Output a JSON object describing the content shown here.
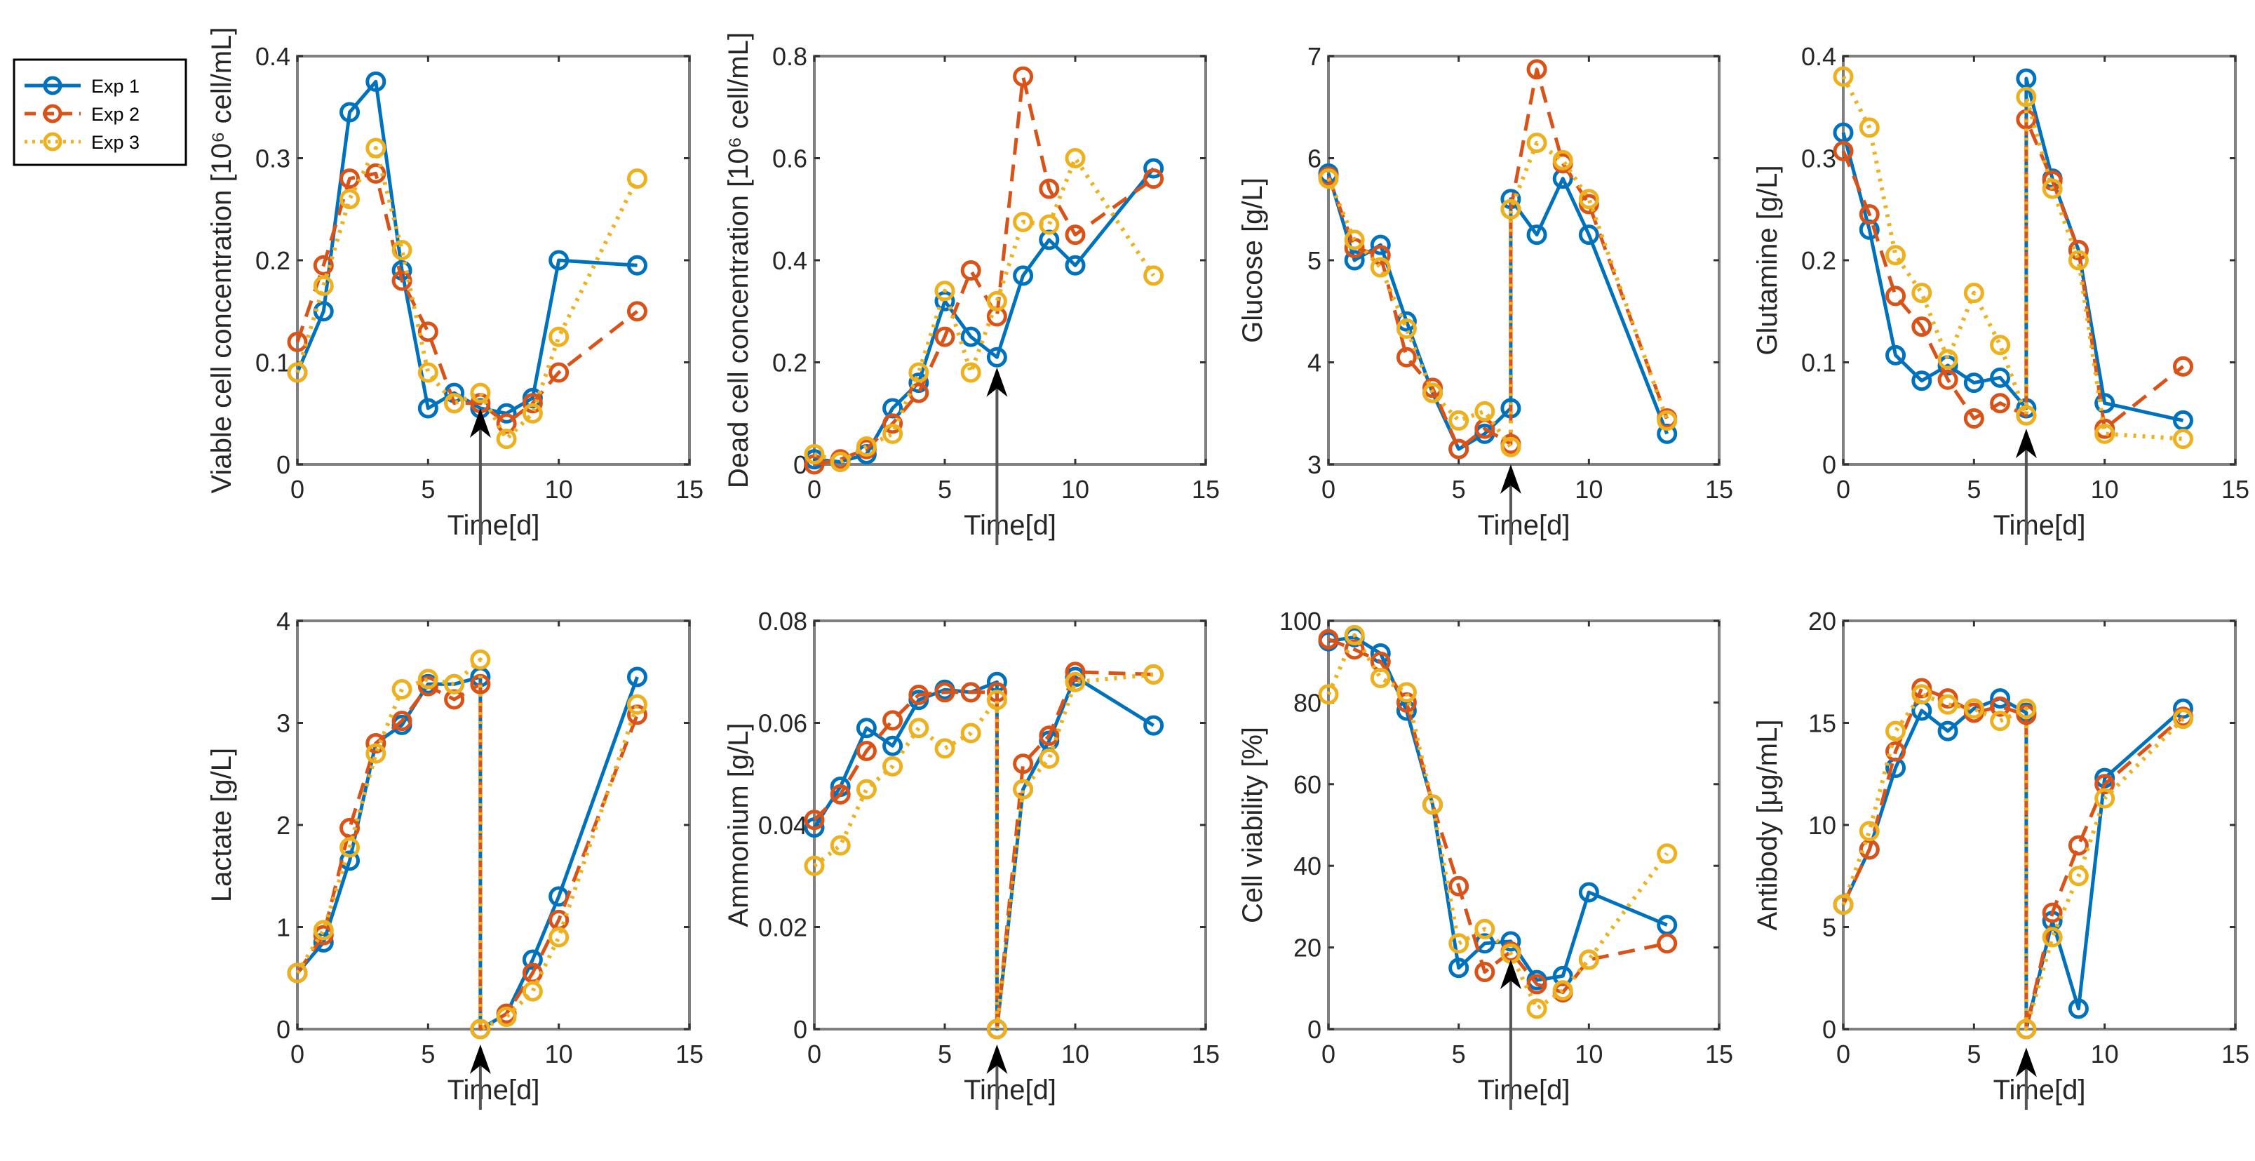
{
  "colors": {
    "exp1": "#0072BD",
    "exp2": "#D95319",
    "exp3": "#EDB120",
    "axis": "#808080",
    "arrow": "#000000",
    "arrow_line": "#555555"
  },
  "legend": {
    "placement": "top-left",
    "entries": [
      "Exp 1",
      "Exp 2",
      "Exp 3"
    ]
  },
  "chart_data": [
    {
      "type": "line",
      "ylabel": "Viable cell concentration [10⁶ cell/mL]",
      "xlabel": "Time[d]",
      "xlim": [
        0,
        15
      ],
      "ylim": [
        0,
        0.4
      ],
      "xticks": [
        "0",
        "5",
        "10",
        "15"
      ],
      "yticks": [
        "0",
        "0.1",
        "0.2",
        "0.3",
        "0.4"
      ],
      "arrow": {
        "x": 7,
        "y_tip": 0.055
      },
      "x": [
        0,
        1,
        2,
        3,
        4,
        5,
        6,
        7,
        8,
        9,
        10,
        13
      ],
      "series": [
        {
          "name": "Exp 1",
          "values": [
            0.09,
            0.15,
            0.345,
            0.375,
            0.19,
            0.055,
            0.07,
            0.055,
            0.05,
            0.065,
            0.2,
            0.195
          ]
        },
        {
          "name": "Exp 2",
          "values": [
            0.12,
            0.195,
            0.28,
            0.285,
            0.18,
            0.13,
            0.06,
            0.06,
            0.04,
            0.06,
            0.09,
            0.15
          ]
        },
        {
          "name": "Exp 3",
          "values": [
            0.09,
            0.175,
            0.26,
            0.31,
            0.21,
            0.09,
            0.06,
            0.07,
            0.025,
            0.05,
            0.125,
            0.28
          ]
        }
      ]
    },
    {
      "type": "line",
      "ylabel": "Dead cell concentration [10⁶ cell/mL]",
      "xlabel": "Time[d]",
      "xlim": [
        0,
        15
      ],
      "ylim": [
        0,
        0.8
      ],
      "xticks": [
        "0",
        "5",
        "10",
        "15"
      ],
      "yticks": [
        "0",
        "0.2",
        "0.4",
        "0.6",
        "0.8"
      ],
      "arrow": {
        "x": 7,
        "y_tip": 0.19
      },
      "x": [
        0,
        1,
        2,
        3,
        4,
        5,
        6,
        7,
        8,
        9,
        10,
        13
      ],
      "series": [
        {
          "name": "Exp 1",
          "values": [
            0.01,
            0.005,
            0.02,
            0.11,
            0.16,
            0.32,
            0.25,
            0.21,
            0.37,
            0.44,
            0.39,
            0.58
          ]
        },
        {
          "name": "Exp 2",
          "values": [
            0.0,
            0.01,
            0.03,
            0.08,
            0.14,
            0.25,
            0.38,
            0.29,
            0.76,
            0.54,
            0.45,
            0.56
          ]
        },
        {
          "name": "Exp 3",
          "values": [
            0.02,
            0.005,
            0.035,
            0.06,
            0.18,
            0.34,
            0.18,
            0.32,
            0.475,
            0.47,
            0.6,
            0.37
          ]
        }
      ]
    },
    {
      "type": "line",
      "ylabel": "Glucose [g/L]",
      "xlabel": "Time[d]",
      "xlim": [
        0,
        15
      ],
      "ylim": [
        3,
        7
      ],
      "xticks": [
        "0",
        "5",
        "10",
        "15"
      ],
      "yticks": [
        "3",
        "4",
        "5",
        "6",
        "7"
      ],
      "arrow": {
        "x": 7,
        "y_tip": 3.0
      },
      "x": [
        0,
        1,
        2,
        3,
        4,
        5,
        6,
        7,
        7,
        8,
        9,
        10,
        13
      ],
      "series": [
        {
          "name": "Exp 1",
          "values": [
            5.85,
            5.0,
            5.15,
            4.4,
            3.7,
            3.15,
            3.3,
            3.55,
            5.6,
            5.25,
            5.8,
            5.25,
            3.3
          ]
        },
        {
          "name": "Exp 2",
          "values": [
            5.82,
            5.12,
            5.05,
            4.05,
            3.75,
            3.15,
            3.35,
            3.2,
            5.5,
            6.87,
            5.95,
            5.55,
            3.45
          ]
        },
        {
          "name": "Exp 3",
          "values": [
            5.8,
            5.2,
            4.93,
            4.33,
            3.7,
            3.43,
            3.52,
            3.17,
            5.5,
            6.15,
            5.98,
            5.6,
            3.43
          ]
        }
      ]
    },
    {
      "type": "line",
      "ylabel": "Glutamine [g/L]",
      "xlabel": "Time[d]",
      "xlim": [
        0,
        15
      ],
      "ylim": [
        0,
        0.4
      ],
      "xticks": [
        "0",
        "5",
        "10",
        "15"
      ],
      "yticks": [
        "0",
        "0.1",
        "0.2",
        "0.3",
        "0.4"
      ],
      "arrow": {
        "x": 7,
        "y_tip": 0.035
      },
      "x": [
        0,
        1,
        2,
        3,
        4,
        5,
        6,
        7,
        7,
        8,
        9,
        10,
        13
      ],
      "series": [
        {
          "name": "Exp 1",
          "values": [
            0.325,
            0.23,
            0.107,
            0.082,
            0.097,
            0.08,
            0.085,
            0.055,
            0.378,
            0.28,
            0.21,
            0.06,
            0.043
          ]
        },
        {
          "name": "Exp 2",
          "values": [
            0.307,
            0.245,
            0.165,
            0.135,
            0.083,
            0.045,
            0.06,
            0.048,
            0.338,
            0.278,
            0.21,
            0.035,
            0.096
          ]
        },
        {
          "name": "Exp 3",
          "values": [
            0.38,
            0.33,
            0.205,
            0.168,
            0.103,
            0.168,
            0.117,
            0.048,
            0.36,
            0.27,
            0.2,
            0.03,
            0.025
          ]
        }
      ]
    },
    {
      "type": "line",
      "ylabel": "Lactate [g/L]",
      "xlabel": "Time[d]",
      "xlim": [
        0,
        15
      ],
      "ylim": [
        0,
        4
      ],
      "xticks": [
        "0",
        "5",
        "10",
        "15"
      ],
      "yticks": [
        "0",
        "1",
        "2",
        "3",
        "4"
      ],
      "arrow": {
        "x": 7,
        "y_tip": -0.15
      },
      "x": [
        0,
        1,
        2,
        3,
        4,
        5,
        6,
        7,
        7,
        8,
        9,
        10,
        13
      ],
      "series": [
        {
          "name": "Exp 1",
          "values": [
            0.55,
            0.85,
            1.65,
            2.8,
            2.98,
            3.38,
            3.38,
            3.45,
            0,
            0.15,
            0.68,
            1.3,
            3.45
          ]
        },
        {
          "name": "Exp 2",
          "values": [
            0.55,
            0.92,
            1.97,
            2.8,
            3.02,
            3.36,
            3.23,
            3.38,
            0,
            0.15,
            0.55,
            1.07,
            3.08
          ]
        },
        {
          "name": "Exp 3",
          "values": [
            0.55,
            0.97,
            1.78,
            2.7,
            3.33,
            3.43,
            3.38,
            3.62,
            0,
            0.12,
            0.37,
            0.9,
            3.18
          ]
        }
      ]
    },
    {
      "type": "line",
      "ylabel": "Ammonium [g/L]",
      "xlabel": "Time[d]",
      "xlim": [
        0,
        15
      ],
      "ylim": [
        0,
        0.08
      ],
      "xticks": [
        "0",
        "5",
        "10",
        "15"
      ],
      "yticks": [
        "0",
        "0.02",
        "0.04",
        "0.06",
        "0.08"
      ],
      "arrow": {
        "x": 7,
        "y_tip": -0.003
      },
      "x": [
        0,
        1,
        2,
        3,
        4,
        5,
        6,
        7,
        7,
        8,
        9,
        10,
        13
      ],
      "series": [
        {
          "name": "Exp 1",
          "values": [
            0.0395,
            0.0475,
            0.059,
            0.0555,
            0.0645,
            0.0665,
            0.066,
            0.068,
            0,
            0.047,
            0.0565,
            0.069,
            0.0595
          ]
        },
        {
          "name": "Exp 2",
          "values": [
            0.041,
            0.046,
            0.0545,
            0.0605,
            0.0655,
            0.066,
            0.066,
            0.066,
            0,
            0.052,
            0.0575,
            0.07,
            0.0695
          ]
        },
        {
          "name": "Exp 3",
          "values": [
            0.032,
            0.036,
            0.047,
            0.0515,
            0.059,
            0.055,
            0.058,
            0.0645,
            0,
            0.047,
            0.053,
            0.068,
            0.0695
          ]
        }
      ]
    },
    {
      "type": "line",
      "ylabel": "Cell viability [%]",
      "xlabel": "Time[d]",
      "xlim": [
        0,
        15
      ],
      "ylim": [
        0,
        100
      ],
      "xticks": [
        "0",
        "5",
        "10",
        "15"
      ],
      "yticks": [
        "0",
        "20",
        "40",
        "60",
        "80",
        "100"
      ],
      "arrow": {
        "x": 7,
        "y_tip": 17
      },
      "x": [
        0,
        1,
        2,
        3,
        4,
        5,
        6,
        7,
        8,
        9,
        10,
        13
      ],
      "series": [
        {
          "name": "Exp 1",
          "values": [
            95,
            96,
            92,
            78,
            55,
            15,
            21,
            21.5,
            12,
            13,
            33.5,
            25.5
          ]
        },
        {
          "name": "Exp 2",
          "values": [
            95.5,
            93,
            90,
            80,
            55,
            35,
            14,
            19,
            11,
            9,
            17,
            21
          ]
        },
        {
          "name": "Exp 3",
          "values": [
            82,
            96.5,
            86,
            82.5,
            55,
            21,
            24.5,
            18.5,
            5,
            9.5,
            17,
            43
          ]
        }
      ]
    },
    {
      "type": "line",
      "ylabel": "Antibody [μg/mL]",
      "xlabel": "Time[d]",
      "xlim": [
        0,
        15
      ],
      "ylim": [
        0,
        20
      ],
      "xticks": [
        "0",
        "5",
        "10",
        "15"
      ],
      "yticks": [
        "0",
        "5",
        "10",
        "15",
        "20"
      ],
      "arrow": {
        "x": 7,
        "y_tip": -0.9
      },
      "x": [
        0,
        1,
        2,
        3,
        4,
        5,
        6,
        7,
        7,
        8,
        9,
        10,
        13
      ],
      "series": [
        {
          "name": "Exp 1",
          "values": [
            6.1,
            8.8,
            12.8,
            15.6,
            14.6,
            15.7,
            16.2,
            15.5,
            0,
            5.3,
            1.0,
            12.3,
            15.7
          ]
        },
        {
          "name": "Exp 2",
          "values": [
            6.1,
            8.8,
            13.6,
            16.7,
            16.2,
            15.5,
            15.8,
            15.4,
            0,
            5.7,
            9.0,
            12.0,
            15.3
          ]
        },
        {
          "name": "Exp 3",
          "values": [
            6.1,
            9.7,
            14.6,
            16.4,
            15.9,
            15.7,
            15.1,
            15.7,
            0,
            4.5,
            7.5,
            11.3,
            15.2
          ]
        }
      ]
    }
  ]
}
